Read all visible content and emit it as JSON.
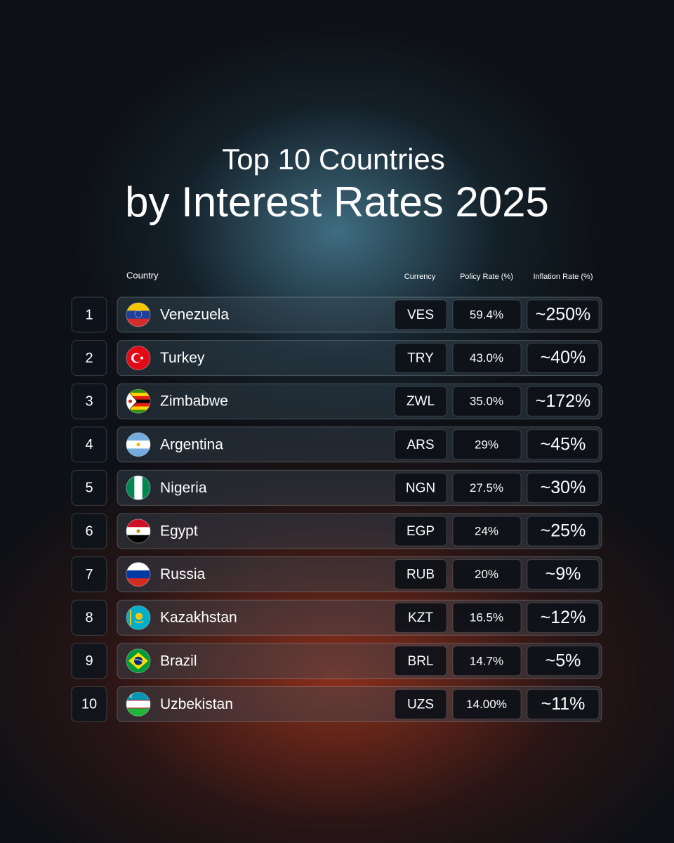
{
  "header": {
    "title_line_1": "Top 10 Countries",
    "title_line_2": "by Interest Rates 2025"
  },
  "table": {
    "columns": {
      "country": "Country",
      "currency": "Currency",
      "policy_rate": "Policy Rate (%)",
      "inflation_rate": "Inflation Rate (%)"
    },
    "rows": [
      {
        "rank": "1",
        "country": "Venezuela",
        "currency": "VES",
        "policy_rate": "59.4%",
        "inflation_rate": "~250%"
      },
      {
        "rank": "2",
        "country": "Turkey",
        "currency": "TRY",
        "policy_rate": "43.0%",
        "inflation_rate": "~40%"
      },
      {
        "rank": "3",
        "country": "Zimbabwe",
        "currency": "ZWL",
        "policy_rate": "35.0%",
        "inflation_rate": "~172%"
      },
      {
        "rank": "4",
        "country": "Argentina",
        "currency": "ARS",
        "policy_rate": "29%",
        "inflation_rate": "~45%"
      },
      {
        "rank": "5",
        "country": "Nigeria",
        "currency": "NGN",
        "policy_rate": "27.5%",
        "inflation_rate": "~30%"
      },
      {
        "rank": "6",
        "country": "Egypt",
        "currency": "EGP",
        "policy_rate": "24%",
        "inflation_rate": "~25%"
      },
      {
        "rank": "7",
        "country": "Russia",
        "currency": "RUB",
        "policy_rate": "20%",
        "inflation_rate": "~9%"
      },
      {
        "rank": "8",
        "country": "Kazakhstan",
        "currency": "KZT",
        "policy_rate": "16.5%",
        "inflation_rate": "~12%"
      },
      {
        "rank": "9",
        "country": "Brazil",
        "currency": "BRL",
        "policy_rate": "14.7%",
        "inflation_rate": "~5%"
      },
      {
        "rank": "10",
        "country": "Uzbekistan",
        "currency": "UZS",
        "policy_rate": "14.00%",
        "inflation_rate": "~11%"
      }
    ]
  }
}
